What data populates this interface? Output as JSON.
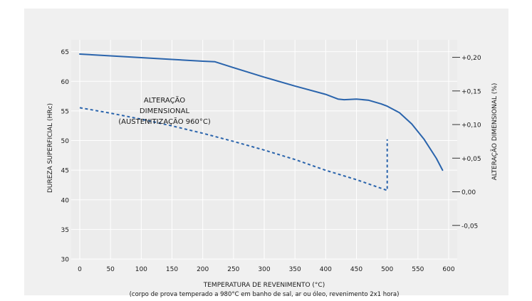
{
  "chart_data": {
    "type": "line",
    "title": "",
    "xlabel": "TEMPERATURA DE REVENIMENTO (°C)",
    "caption": "(corpo de prova temperado a 980°C em banho de sal, ar ou óleo, revenimento 2x1 hora)",
    "ylabel": "DUREZA SUPERFICIAL (HRc)",
    "y2label": "ALTERAÇÃO DIMENSIONAL (%)",
    "xlim": [
      0,
      600
    ],
    "ylim": [
      30,
      67
    ],
    "y2lim": [
      -0.1,
      0.226
    ],
    "x_ticks": [
      0,
      50,
      100,
      150,
      200,
      250,
      300,
      350,
      400,
      450,
      500,
      550,
      600
    ],
    "y_ticks": [
      30,
      35,
      40,
      45,
      50,
      55,
      60,
      65
    ],
    "y2_ticks": [
      "+0,20",
      "+0,15",
      "+0,10",
      "+0,05",
      "0,00",
      "-0,05"
    ],
    "y2_tick_values": [
      0.2,
      0.15,
      0.1,
      0.05,
      0.0,
      -0.05
    ],
    "annotation": [
      "ALTERAÇÃO",
      "DIMENSIONAL",
      "(AUSTENITIZAÇÃO 960°C)"
    ],
    "grid": true,
    "colors": {
      "line": "#2a64ac",
      "grid": "#ffffff",
      "plot_bg": "#ececec",
      "text": "#1a1a1a"
    },
    "series": [
      {
        "axis": "left",
        "style": "solid",
        "x": [
          0,
          50,
          100,
          150,
          200,
          220,
          250,
          300,
          350,
          400,
          420,
          430,
          450,
          470,
          490,
          500,
          520,
          540,
          560,
          580,
          590
        ],
        "values": [
          64.6,
          64.3,
          64.0,
          63.7,
          63.4,
          63.3,
          62.3,
          60.7,
          59.2,
          57.8,
          57.0,
          56.9,
          57.0,
          56.8,
          56.2,
          55.8,
          54.7,
          52.8,
          50.2,
          47.0,
          45.0
        ]
      },
      {
        "axis": "right",
        "style": "dashed",
        "x": [
          0,
          50,
          100,
          150,
          200,
          250,
          300,
          350,
          400,
          450,
          500,
          500,
          500
        ],
        "values": [
          0.125,
          0.117,
          0.108,
          0.098,
          0.087,
          0.075,
          0.062,
          0.048,
          0.032,
          0.018,
          0.002,
          0.002,
          0.078
        ]
      }
    ]
  }
}
